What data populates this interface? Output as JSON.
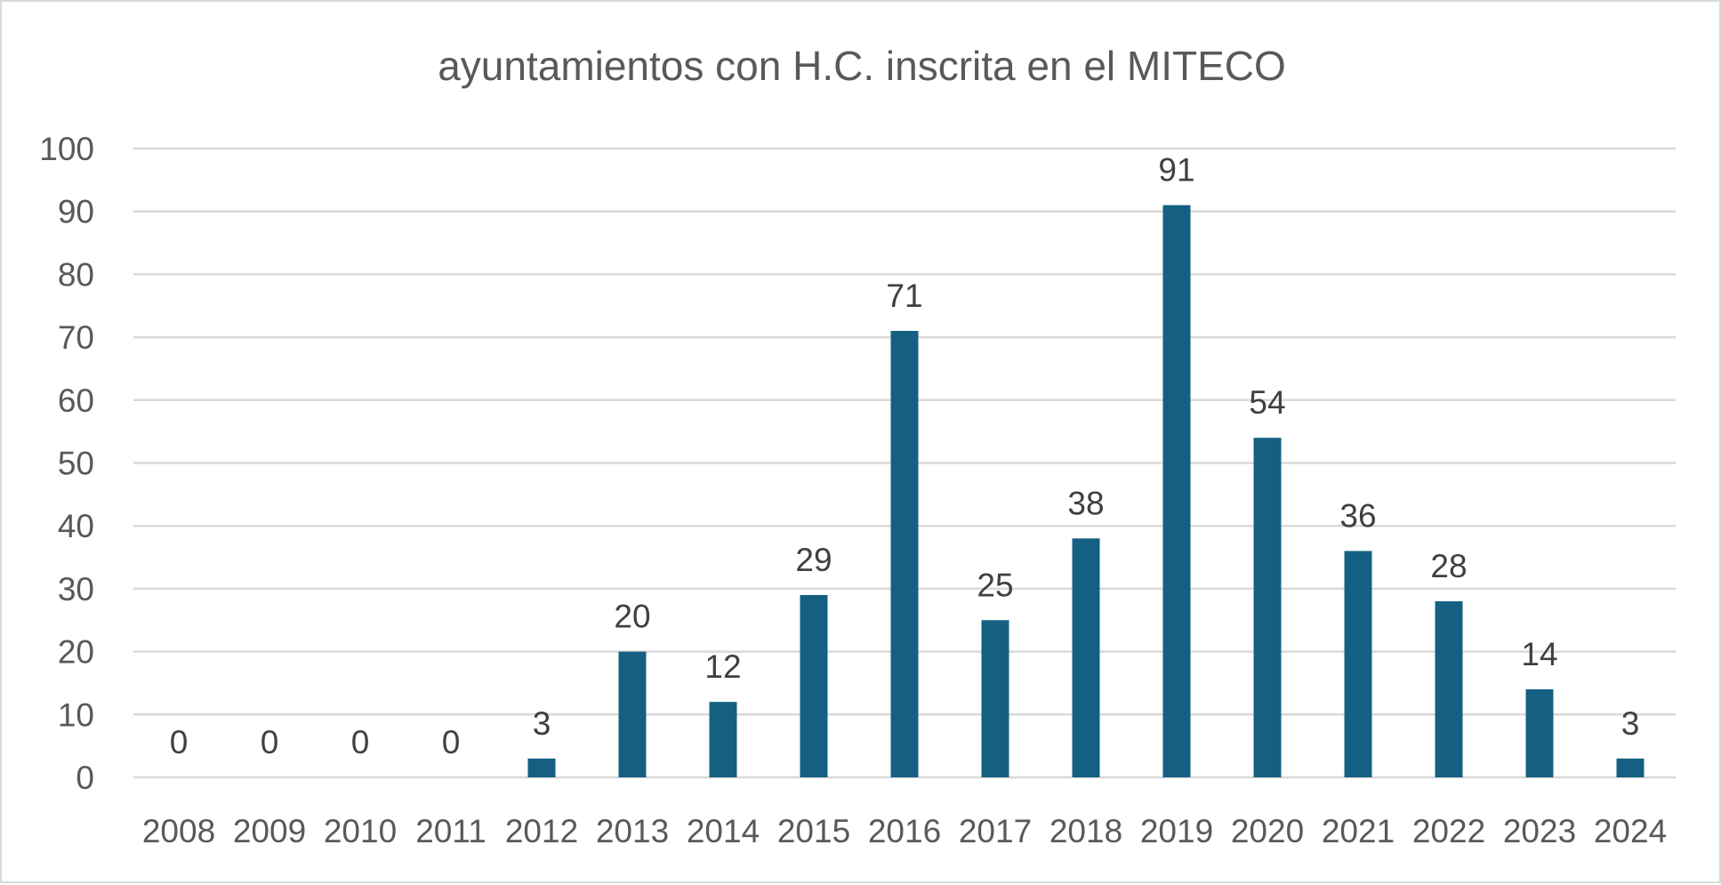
{
  "chart_data": {
    "type": "bar",
    "title": "ayuntamientos con H.C. inscrita en el MITECO",
    "xlabel": "",
    "ylabel": "",
    "categories": [
      "2008",
      "2009",
      "2010",
      "2011",
      "2012",
      "2013",
      "2014",
      "2015",
      "2016",
      "2017",
      "2018",
      "2019",
      "2020",
      "2021",
      "2022",
      "2023",
      "2024"
    ],
    "values": [
      0,
      0,
      0,
      0,
      3,
      20,
      12,
      29,
      71,
      25,
      38,
      91,
      54,
      36,
      28,
      14,
      3
    ],
    "ylim": [
      0,
      100
    ],
    "yticks": [
      0,
      10,
      20,
      30,
      40,
      50,
      60,
      70,
      80,
      90,
      100
    ],
    "grid": true,
    "legend": "none",
    "data_labels": true,
    "bar_color": "#156082"
  }
}
